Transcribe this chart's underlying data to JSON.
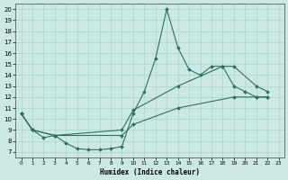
{
  "background_color": "#cce8e4",
  "grid_color": "#aad4cc",
  "line_color": "#2d7060",
  "xlabel": "Humidex (Indice chaleur)",
  "xlim": [
    -0.5,
    23.5
  ],
  "ylim": [
    6.5,
    20.5
  ],
  "yticks": [
    7,
    8,
    9,
    10,
    11,
    12,
    13,
    14,
    15,
    16,
    17,
    18,
    19,
    20
  ],
  "xticks": [
    0,
    1,
    2,
    3,
    4,
    5,
    6,
    7,
    8,
    9,
    10,
    11,
    12,
    13,
    14,
    15,
    16,
    17,
    18,
    19,
    20,
    21,
    22,
    23
  ],
  "line1_x": [
    0,
    1,
    2,
    3,
    4,
    5,
    6,
    7,
    8,
    9,
    10,
    11,
    12,
    13,
    14,
    15,
    16,
    17,
    18,
    19,
    20,
    21,
    22
  ],
  "line1_y": [
    10.5,
    9.0,
    8.3,
    8.5,
    7.8,
    7.3,
    7.2,
    7.2,
    7.3,
    7.5,
    10.5,
    12.5,
    15.5,
    20.0,
    16.5,
    14.5,
    14.0,
    14.8,
    14.8,
    13.0,
    12.5,
    12.0,
    12.0
  ],
  "line2_x": [
    0,
    1,
    3,
    9,
    10,
    14,
    19,
    21,
    22
  ],
  "line2_y": [
    10.5,
    9.0,
    8.5,
    8.5,
    9.5,
    11.0,
    12.0,
    12.0,
    12.0
  ],
  "line3_x": [
    0,
    1,
    3,
    9,
    10,
    14,
    18,
    19,
    21,
    22
  ],
  "line3_y": [
    10.5,
    9.0,
    8.5,
    9.0,
    10.8,
    13.0,
    14.8,
    14.8,
    13.0,
    12.5
  ]
}
